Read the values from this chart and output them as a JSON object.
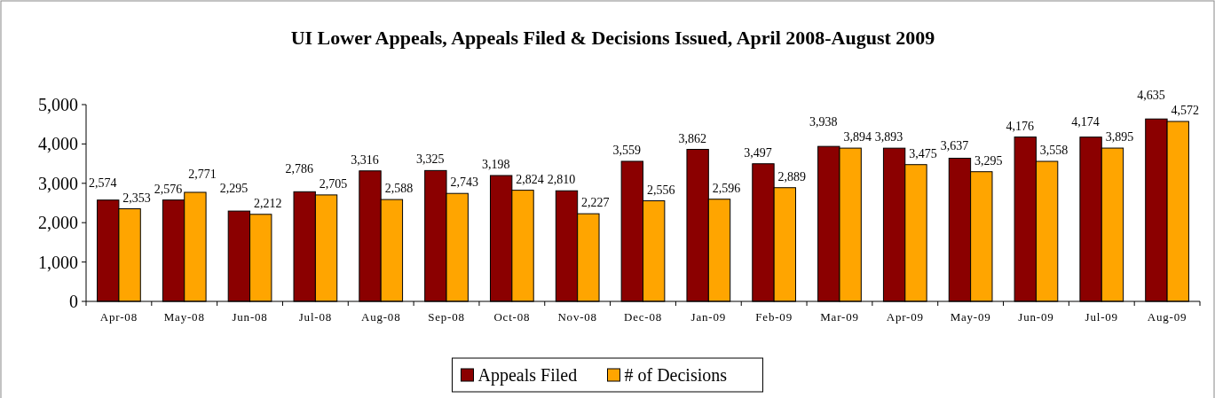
{
  "chart_data": {
    "type": "bar",
    "title": "UI Lower Appeals, Appeals Filed & Decisions Issued, April 2008-August 2009",
    "categories": [
      "Apr-08",
      "May-08",
      "Jun-08",
      "Jul-08",
      "Aug-08",
      "Sep-08",
      "Oct-08",
      "Nov-08",
      "Dec-08",
      "Jan-09",
      "Feb-09",
      "Mar-09",
      "Apr-09",
      "May-09",
      "Jun-09",
      "Jul-09",
      "Aug-09"
    ],
    "series": [
      {
        "name": "Appeals Filed",
        "color": "#8b0000",
        "values": [
          2574,
          2576,
          2295,
          2786,
          3316,
          3325,
          3198,
          2810,
          3559,
          3862,
          3497,
          3938,
          3893,
          3637,
          4176,
          4174,
          4635
        ],
        "value_labels": [
          "2,574",
          "2,576",
          "2,295",
          "2,786",
          "3,316",
          "3,325",
          "3,198",
          "2,810",
          "3,559",
          "3,862",
          "3,497",
          "3,938",
          "3,893",
          "3,637",
          "4,176",
          "4,174",
          "4,635"
        ]
      },
      {
        "name": "# of Decisions",
        "color": "#ffa500",
        "values": [
          2353,
          2771,
          2212,
          2705,
          2588,
          2743,
          2824,
          2227,
          2556,
          2596,
          2889,
          3894,
          3475,
          3295,
          3558,
          3895,
          4572
        ],
        "value_labels": [
          "2,353",
          "2,771",
          "2,212",
          "2,705",
          "2,588",
          "2,743",
          "2,824",
          "2,227",
          "2,556",
          "2,596",
          "2,889",
          "3,894",
          "3,475",
          "3,295",
          "3,558",
          "3,895",
          "4,572"
        ]
      }
    ],
    "ylim": [
      0,
      5000
    ],
    "yticks": [
      {
        "value": 0,
        "label": "0"
      },
      {
        "value": 1000,
        "label": "1,000"
      },
      {
        "value": 2000,
        "label": "2,000"
      },
      {
        "value": 3000,
        "label": "3,000"
      },
      {
        "value": 4000,
        "label": "4,000"
      },
      {
        "value": 5000,
        "label": "5,000"
      }
    ],
    "legend": "bottom",
    "grid": false
  }
}
